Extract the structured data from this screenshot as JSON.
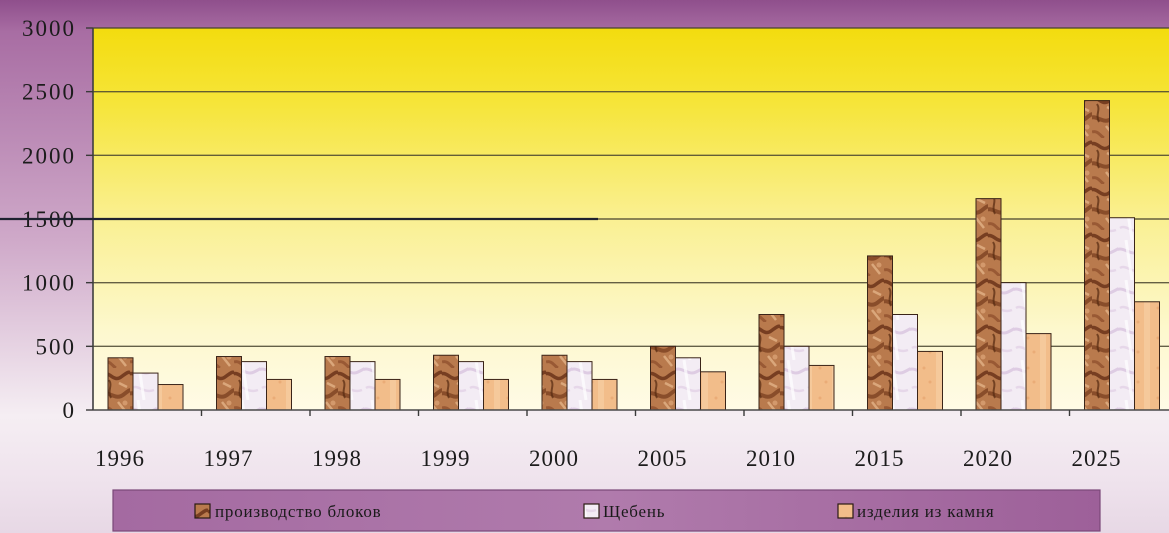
{
  "chart_data": {
    "type": "bar",
    "categories": [
      "1996",
      "1997",
      "1998",
      "1999",
      "2000",
      "2005",
      "2010",
      "2015",
      "2020",
      "2025"
    ],
    "series": [
      {
        "name": "производство блоков",
        "values": [
          410,
          420,
          420,
          430,
          430,
          500,
          750,
          1210,
          1660,
          2430
        ],
        "color": "#b97a4d"
      },
      {
        "name": "Щебень",
        "values": [
          290,
          380,
          380,
          380,
          380,
          410,
          500,
          750,
          1000,
          1510
        ],
        "color": "#f3ecf4"
      },
      {
        "name": "изделия из камня",
        "values": [
          200,
          240,
          240,
          240,
          240,
          300,
          350,
          460,
          600,
          850
        ],
        "color": "#f2bd8a"
      }
    ],
    "ylim": [
      0,
      3000
    ],
    "yticks": [
      0,
      500,
      1000,
      1500,
      2000,
      2500,
      3000
    ],
    "grid": true,
    "legend": "bottom"
  },
  "colors": {
    "plot_top": "#f3dc0e",
    "plot_bottom": "#fffbe6",
    "gridline": "#4a4630",
    "frame_top": "#8f4f8c",
    "legend_box": "#a46aa1"
  }
}
